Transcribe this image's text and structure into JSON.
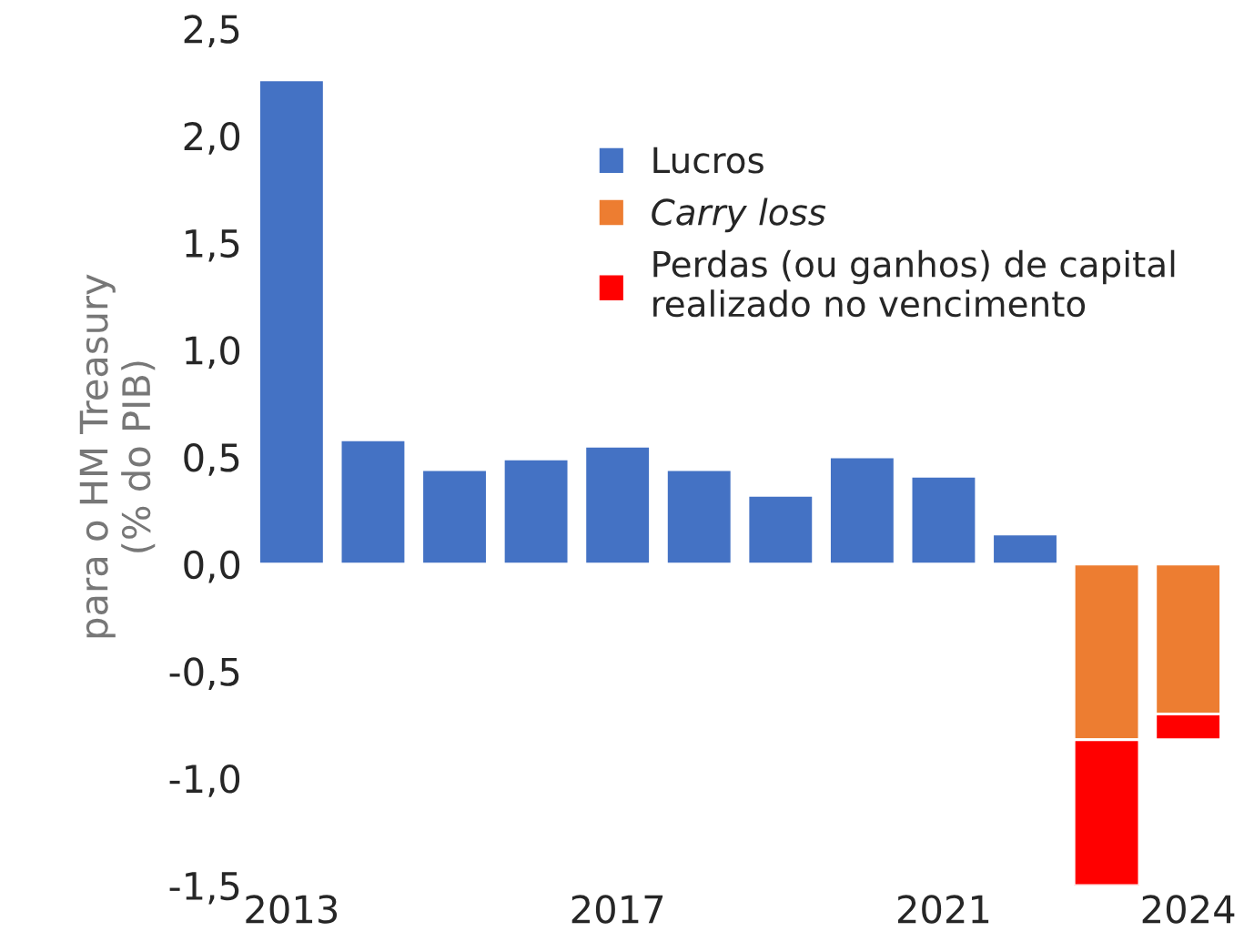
{
  "chart_data": {
    "type": "bar",
    "stacked": true,
    "ylabel": "para o HM Treasury\n(% do PIB)",
    "categories": [
      "2013",
      null,
      null,
      null,
      "2017",
      null,
      null,
      null,
      "2021",
      null,
      null,
      "2024"
    ],
    "series": [
      {
        "name": "Lucros",
        "color": "#4472c4",
        "values": [
          2.26,
          0.58,
          0.44,
          0.49,
          0.55,
          0.44,
          0.32,
          0.5,
          0.41,
          0.14,
          null,
          null
        ]
      },
      {
        "name": "Carry loss",
        "color": "#ed7d31",
        "values": [
          null,
          null,
          null,
          null,
          null,
          null,
          null,
          null,
          null,
          null,
          -0.82,
          -0.7
        ]
      },
      {
        "name": "Perdas (ou ganhos) de capital\nrealizado no vencimento",
        "color": "#ff0000",
        "values": [
          null,
          null,
          null,
          null,
          null,
          null,
          null,
          null,
          null,
          null,
          -0.68,
          -0.12
        ]
      }
    ],
    "ylim": [
      -1.5,
      2.5
    ],
    "yticks": [
      {
        "value": 2.5,
        "label": "2,5"
      },
      {
        "value": 2.0,
        "label": "2,0"
      },
      {
        "value": 1.5,
        "label": "1,5"
      },
      {
        "value": 1.0,
        "label": "1,0"
      },
      {
        "value": 0.5,
        "label": "0,5"
      },
      {
        "value": 0.0,
        "label": "0,0"
      },
      {
        "value": -0.5,
        "label": "-0,5"
      },
      {
        "value": -1.0,
        "label": "-1,0"
      },
      {
        "value": -1.5,
        "label": "-1,5"
      }
    ],
    "grid": false,
    "legend": "top right"
  }
}
